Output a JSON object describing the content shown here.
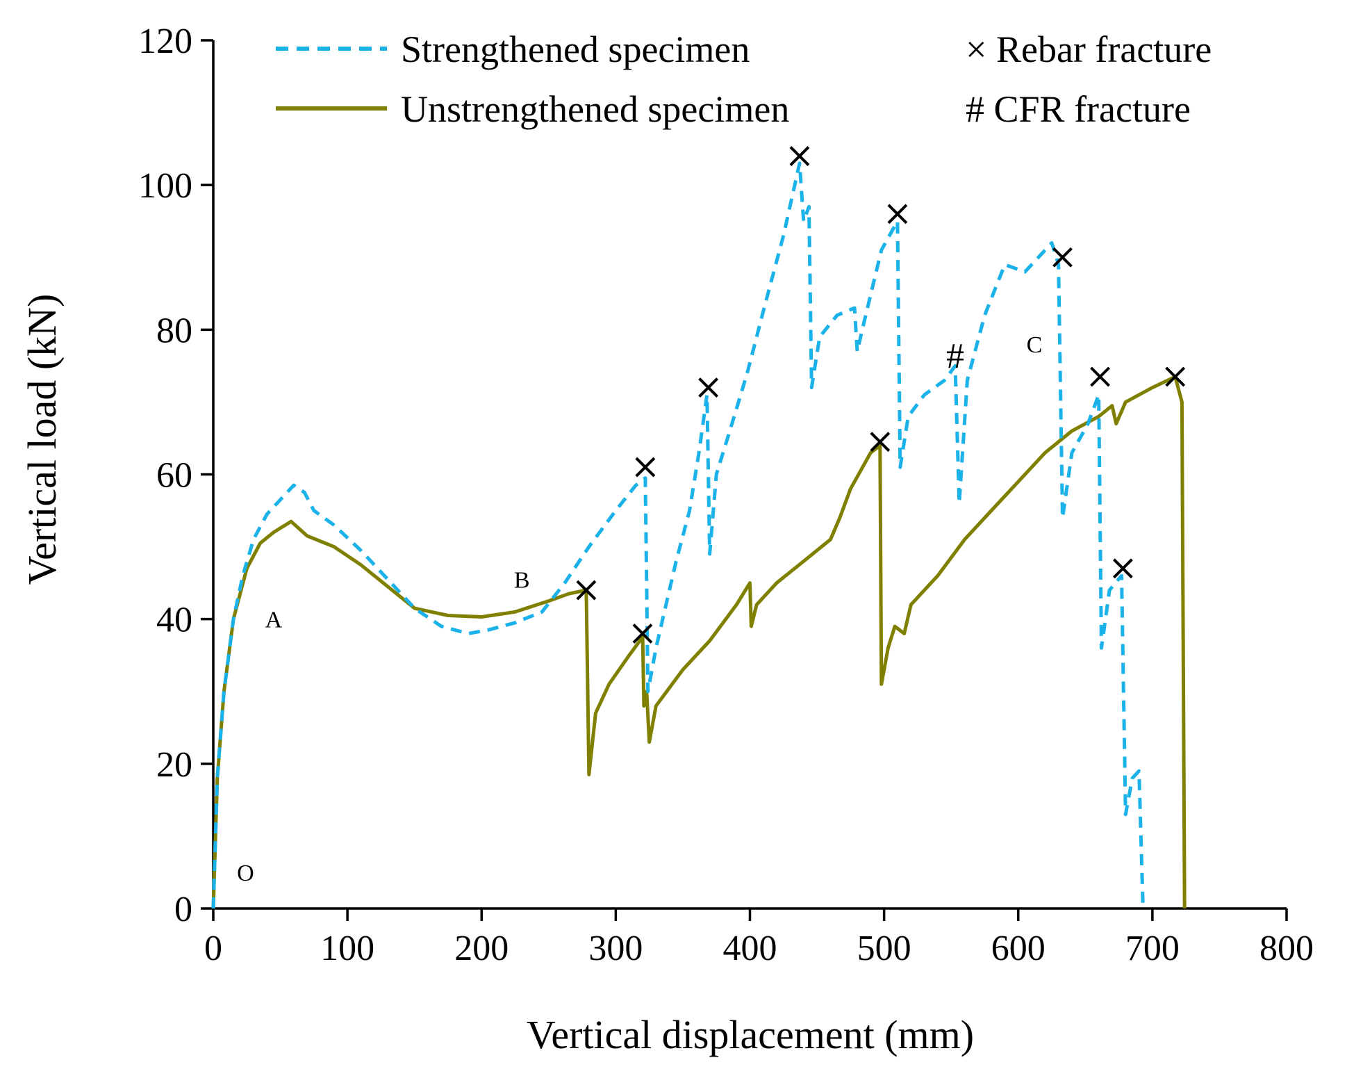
{
  "chart_data": {
    "type": "line",
    "xlabel": "Vertical displacement (mm)",
    "ylabel": "Vertical load (kN)",
    "xlim": [
      0,
      800
    ],
    "ylim": [
      0,
      120
    ],
    "xticks": [
      0,
      100,
      200,
      300,
      400,
      500,
      600,
      700,
      800
    ],
    "yticks": [
      0,
      20,
      40,
      60,
      80,
      100,
      120
    ],
    "grid": false,
    "legend_position": "top",
    "colors": {
      "strengthened": "#1ab2e8",
      "unstrengthened": "#808000",
      "marker": "#000000"
    },
    "series": [
      {
        "name": "Strengthened specimen",
        "style": "dashed",
        "points": [
          [
            0,
            0
          ],
          [
            3,
            18
          ],
          [
            8,
            30
          ],
          [
            15,
            40
          ],
          [
            22,
            46
          ],
          [
            30,
            51
          ],
          [
            40,
            54.5
          ],
          [
            50,
            56.5
          ],
          [
            60,
            58.5
          ],
          [
            68,
            57.5
          ],
          [
            75,
            55
          ],
          [
            90,
            53
          ],
          [
            110,
            49.5
          ],
          [
            130,
            45.5
          ],
          [
            150,
            41.5
          ],
          [
            170,
            39
          ],
          [
            190,
            38
          ],
          [
            205,
            38.5
          ],
          [
            225,
            39.5
          ],
          [
            245,
            41
          ],
          [
            262,
            45
          ],
          [
            280,
            50
          ],
          [
            300,
            55
          ],
          [
            315,
            58.5
          ],
          [
            322,
            59.5
          ],
          [
            324,
            30
          ],
          [
            330,
            36
          ],
          [
            345,
            48
          ],
          [
            355,
            55
          ],
          [
            362,
            63
          ],
          [
            368,
            71
          ],
          [
            370,
            49
          ],
          [
            375,
            60
          ],
          [
            385,
            66
          ],
          [
            398,
            74
          ],
          [
            412,
            84
          ],
          [
            425,
            93
          ],
          [
            437,
            103
          ],
          [
            440,
            95
          ],
          [
            444,
            97
          ],
          [
            446,
            72
          ],
          [
            452,
            79
          ],
          [
            465,
            82
          ],
          [
            478,
            83
          ],
          [
            480,
            77
          ],
          [
            485,
            81
          ],
          [
            498,
            91
          ],
          [
            507,
            94
          ],
          [
            510,
            95
          ],
          [
            512,
            61
          ],
          [
            518,
            68
          ],
          [
            530,
            71
          ],
          [
            545,
            73
          ],
          [
            553,
            75
          ],
          [
            556,
            56
          ],
          [
            562,
            73
          ],
          [
            575,
            82
          ],
          [
            590,
            89
          ],
          [
            605,
            88
          ],
          [
            615,
            90
          ],
          [
            625,
            92
          ],
          [
            630,
            89
          ],
          [
            633,
            54
          ],
          [
            640,
            63
          ],
          [
            652,
            67
          ],
          [
            660,
            71
          ],
          [
            662,
            36
          ],
          [
            668,
            44
          ],
          [
            677,
            46
          ],
          [
            680,
            13
          ],
          [
            685,
            18
          ],
          [
            690,
            19
          ],
          [
            693,
            0
          ]
        ]
      },
      {
        "name": "Unstrengthened specimen",
        "style": "solid",
        "points": [
          [
            0,
            0
          ],
          [
            3,
            18
          ],
          [
            8,
            30
          ],
          [
            15,
            40
          ],
          [
            25,
            47
          ],
          [
            35,
            50.5
          ],
          [
            45,
            52
          ],
          [
            58,
            53.5
          ],
          [
            70,
            51.5
          ],
          [
            90,
            50
          ],
          [
            110,
            47.5
          ],
          [
            130,
            44.5
          ],
          [
            150,
            41.5
          ],
          [
            175,
            40.5
          ],
          [
            200,
            40.3
          ],
          [
            225,
            41
          ],
          [
            250,
            42.5
          ],
          [
            265,
            43.5
          ],
          [
            278,
            44
          ],
          [
            280,
            18.5
          ],
          [
            285,
            27
          ],
          [
            295,
            31
          ],
          [
            310,
            35
          ],
          [
            318,
            37
          ],
          [
            320,
            38
          ],
          [
            321,
            28
          ],
          [
            323,
            30
          ],
          [
            325,
            23
          ],
          [
            330,
            28
          ],
          [
            350,
            33
          ],
          [
            370,
            37
          ],
          [
            390,
            42
          ],
          [
            400,
            45
          ],
          [
            401,
            39
          ],
          [
            405,
            42
          ],
          [
            420,
            45
          ],
          [
            440,
            48
          ],
          [
            460,
            51
          ],
          [
            467,
            54
          ],
          [
            475,
            58
          ],
          [
            490,
            63
          ],
          [
            497,
            64
          ],
          [
            498,
            31
          ],
          [
            503,
            36
          ],
          [
            508,
            39
          ],
          [
            515,
            38
          ],
          [
            520,
            42
          ],
          [
            540,
            46
          ],
          [
            560,
            51
          ],
          [
            580,
            55
          ],
          [
            600,
            59
          ],
          [
            620,
            63
          ],
          [
            640,
            66
          ],
          [
            660,
            68
          ],
          [
            670,
            69.5
          ],
          [
            673,
            67
          ],
          [
            680,
            70
          ],
          [
            700,
            72
          ],
          [
            717,
            73.5
          ],
          [
            722,
            70
          ],
          [
            724,
            0
          ]
        ]
      }
    ],
    "rebar_fracture_points": [
      [
        278,
        44
      ],
      [
        320,
        38
      ],
      [
        322,
        61
      ],
      [
        369,
        72
      ],
      [
        437,
        104
      ],
      [
        510,
        96
      ],
      [
        633,
        90
      ],
      [
        661,
        73.5
      ],
      [
        678,
        47
      ],
      [
        717,
        73.5
      ],
      [
        497,
        64.5
      ]
    ],
    "cfr_fracture_points": [
      [
        553,
        76.5
      ]
    ],
    "legend": {
      "strengthened": "Strengthened specimen",
      "unstrengthened": "Unstrengthened specimen",
      "rebar": "× Rebar fracture",
      "cfr": "# CFR fracture"
    },
    "annotations": [
      {
        "text": "O",
        "x": 24,
        "y": 5
      },
      {
        "text": "A",
        "x": 45,
        "y": 40
      },
      {
        "text": "B",
        "x": 230,
        "y": 45.5
      },
      {
        "text": "C",
        "x": 612,
        "y": 78
      }
    ]
  }
}
